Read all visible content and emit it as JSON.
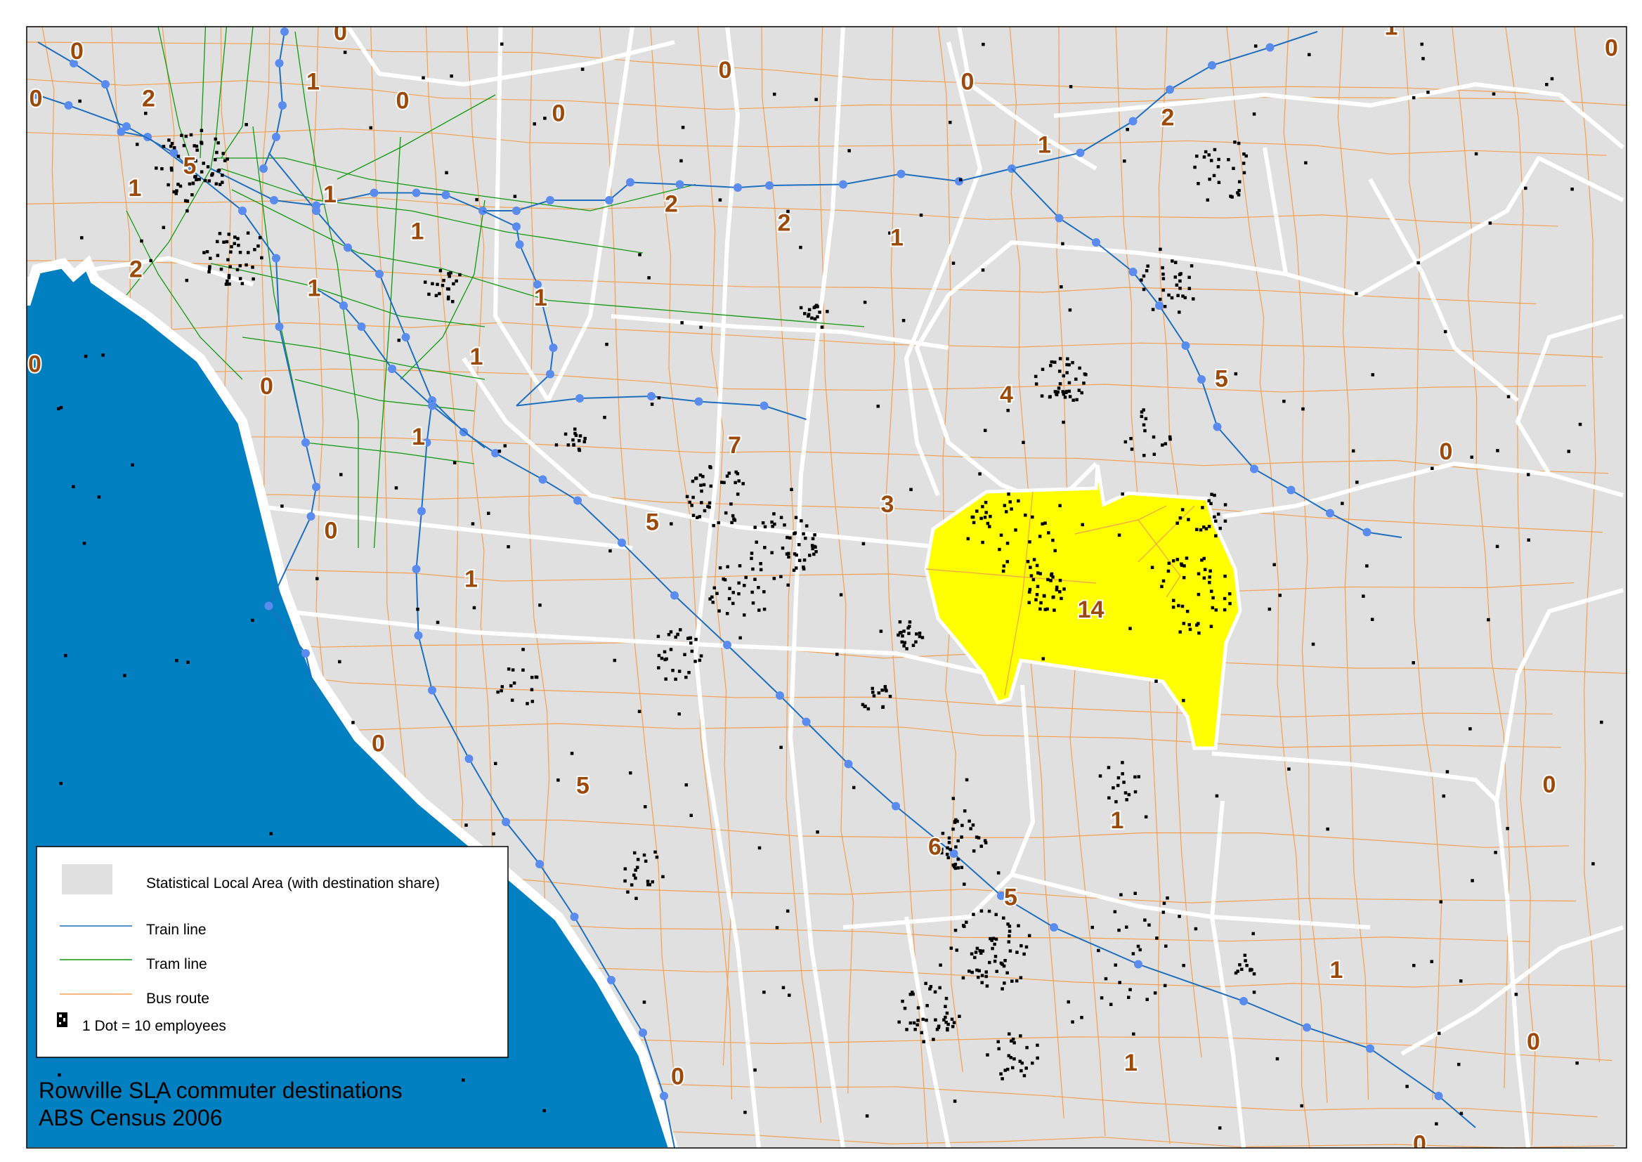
{
  "colors": {
    "land": "#e0e0e0",
    "water": "#0080c0",
    "highlight_sla": "#ffff00",
    "sla_boundary": "#ffffff",
    "train_line": "#1f6fc0",
    "train_station": "#5a8cf0",
    "tram_line": "#109a10",
    "bus_route": "#f5a050",
    "dot": "#000000",
    "label": "#9c4a0a"
  },
  "map": {
    "highlighted_sla_share": "14",
    "sla_labels": [
      "0",
      "0",
      "2",
      "1",
      "0",
      "0",
      "0",
      "0",
      "0",
      "5",
      "1",
      "1",
      "1",
      "2",
      "1",
      "1",
      "1",
      "0",
      "0",
      "1",
      "0",
      "1",
      "0",
      "5",
      "2",
      "2",
      "1",
      "1",
      "2",
      "7",
      "5",
      "3",
      "4",
      "5",
      "0",
      "0",
      "1",
      "14",
      "0",
      "1",
      "6",
      "5",
      "1",
      "0",
      "1",
      "0",
      "0"
    ]
  },
  "legend": {
    "items": [
      {
        "label": "Statistical Local Area (with destination share)",
        "icon": "grey-area-swatch"
      },
      {
        "label": "Train line",
        "icon": "blue-line"
      },
      {
        "label": "Tram line",
        "icon": "green-line"
      },
      {
        "label": "Bus route",
        "icon": "orange-line"
      },
      {
        "label": "1 Dot = 10 employees",
        "icon": "dot-symbol"
      }
    ]
  },
  "title": {
    "line1": "Rowville SLA commuter destinations",
    "line2": "ABS Census 2006"
  }
}
